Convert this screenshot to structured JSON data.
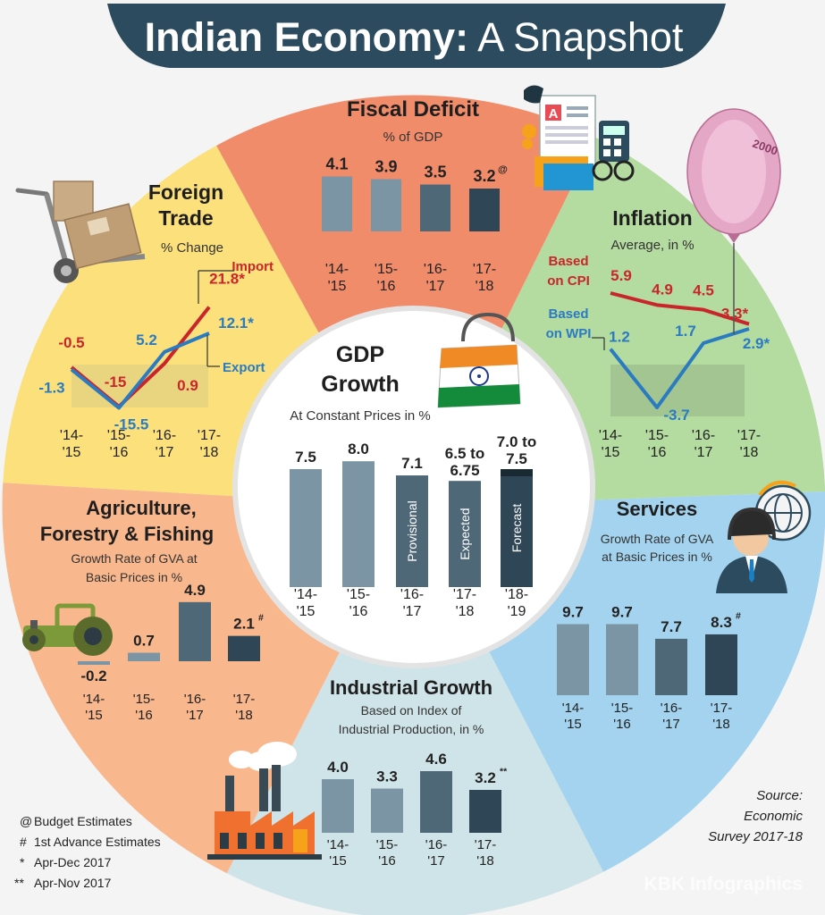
{
  "title": {
    "bold": "Indian Economy:",
    "light": "A Snapshot"
  },
  "colors": {
    "bar_light": "#7c95a5",
    "bar_mid": "#4f6878",
    "bar_dark": "#2e4656",
    "import": "#c8262b",
    "export": "#2b7bc0",
    "banner": "#2c4b5e",
    "fiscal_bg": "#f18c6b",
    "inflation_bg": "#b4dba0",
    "trade_bg": "#fbe07c",
    "agri_bg": "#f8b78c",
    "industry_bg": "#cfe4e8",
    "services_bg": "#a3d3ee"
  },
  "icons": [
    "boxes-trolley-icon",
    "documents-icon",
    "rupee-balloon-icon",
    "shopping-bag-flag-icon",
    "call-center-icon",
    "tractor-icon",
    "factory-icon"
  ],
  "chart_data": [
    {
      "id": "fiscal",
      "type": "bar",
      "title": "Fiscal Deficit",
      "subtitle": "% of GDP",
      "categories": [
        "'14-\n'15",
        "'15-\n'16",
        "'16-\n'17",
        "'17-\n'18"
      ],
      "values": [
        4.1,
        3.9,
        3.5,
        3.2
      ],
      "labels": [
        "4.1",
        "3.9",
        "3.5",
        "3.2"
      ],
      "markers": [
        "",
        "",
        "",
        "@"
      ]
    },
    {
      "id": "trade",
      "type": "line",
      "title": "Foreign Trade",
      "title_lines": [
        "Foreign",
        "Trade"
      ],
      "subtitle": "% Change",
      "categories": [
        "'14-\n'15",
        "'15-\n'16",
        "'16-\n'17",
        "'17-\n'18"
      ],
      "series": [
        {
          "name": "Import",
          "values": [
            -0.5,
            -15,
            0.9,
            21.8
          ],
          "labels": [
            "-0.5",
            "-15",
            "0.9",
            "21.8*"
          ]
        },
        {
          "name": "Export",
          "values": [
            -1.3,
            -15.5,
            5.2,
            12.1
          ],
          "labels": [
            "-1.3",
            "-15.5",
            "5.2",
            "12.1*"
          ]
        }
      ],
      "ylim": [
        -16,
        23
      ]
    },
    {
      "id": "inflation",
      "type": "line",
      "title": "Inflation",
      "subtitle": "Average, in %",
      "categories": [
        "'14-\n'15",
        "'15-\n'16",
        "'16-\n'17",
        "'17-\n'18"
      ],
      "series": [
        {
          "name": "Based on CPI",
          "name_lines": [
            "Based",
            "on CPI"
          ],
          "values": [
            5.9,
            4.9,
            4.5,
            3.3
          ],
          "labels": [
            "5.9",
            "4.9",
            "4.5",
            "3.3*"
          ]
        },
        {
          "name": "Based on WPI",
          "name_lines": [
            "Based",
            "on WPI"
          ],
          "values": [
            1.2,
            -3.7,
            1.7,
            2.9
          ],
          "labels": [
            "1.2",
            "-3.7",
            "1.7",
            "2.9*"
          ]
        }
      ],
      "ylim": [
        -4,
        6.5
      ]
    },
    {
      "id": "gdp",
      "type": "bar",
      "title": "GDP Growth",
      "title_lines": [
        "GDP",
        "Growth"
      ],
      "subtitle": "At Constant Prices in %",
      "categories": [
        "'14-\n'15",
        "'15-\n'16",
        "'16-\n'17",
        "'17-\n'18",
        "'18-\n'19"
      ],
      "values": [
        7.5,
        8.0,
        7.1,
        6.75,
        7.5
      ],
      "labels": [
        "7.5",
        "8.0",
        "7.1",
        "6.5 to\n6.75",
        "7.0 to\n7.5"
      ],
      "annotations": [
        "",
        "",
        "Provisional",
        "Expected",
        "Forecast"
      ]
    },
    {
      "id": "agri",
      "type": "bar",
      "title": "Agriculture, Forestry & Fishing",
      "title_lines": [
        "Agriculture,",
        "Forestry & Fishing"
      ],
      "subtitle": "Growth Rate of GVA at Basic Prices in %",
      "subtitle_lines": [
        "Growth Rate of GVA at",
        "Basic Prices in %"
      ],
      "categories": [
        "'14-\n'15",
        "'15-\n'16",
        "'16-\n'17",
        "'17-\n'18"
      ],
      "values": [
        -0.2,
        0.7,
        4.9,
        2.1
      ],
      "labels": [
        "-0.2",
        "0.7",
        "4.9",
        "2.1"
      ],
      "markers": [
        "",
        "",
        "",
        "#"
      ]
    },
    {
      "id": "industry",
      "type": "bar",
      "title": "Industrial Growth",
      "subtitle": "Based on Index of Industrial Production, in %",
      "subtitle_lines": [
        "Based on Index of",
        "Industrial Production, in %"
      ],
      "categories": [
        "'14-\n'15",
        "'15-\n'16",
        "'16-\n'17",
        "'17-\n'18"
      ],
      "values": [
        4.0,
        3.3,
        4.6,
        3.2
      ],
      "labels": [
        "4.0",
        "3.3",
        "4.6",
        "3.2"
      ],
      "markers": [
        "",
        "",
        "",
        "**"
      ]
    },
    {
      "id": "services",
      "type": "bar",
      "title": "Services",
      "subtitle": "Growth Rate of GVA at Basic Prices in %",
      "subtitle_lines": [
        "Growth Rate of GVA",
        "at Basic Prices in %"
      ],
      "categories": [
        "'14-\n'15",
        "'15-\n'16",
        "'16-\n'17",
        "'17-\n'18"
      ],
      "values": [
        9.7,
        9.7,
        7.7,
        8.3
      ],
      "labels": [
        "9.7",
        "9.7",
        "7.7",
        "8.3"
      ],
      "markers": [
        "",
        "",
        "",
        "#"
      ]
    }
  ],
  "notes": [
    {
      "symbol": "@",
      "text": "Budget Estimates"
    },
    {
      "symbol": "#",
      "text": "1st Advance Estimates"
    },
    {
      "symbol": "*",
      "text": "Apr-Dec 2017"
    },
    {
      "symbol": "**",
      "text": "Apr-Nov 2017"
    }
  ],
  "source": [
    "Source:",
    "Economic",
    "Survey 2017-18"
  ],
  "watermark": "KBK Infographics"
}
